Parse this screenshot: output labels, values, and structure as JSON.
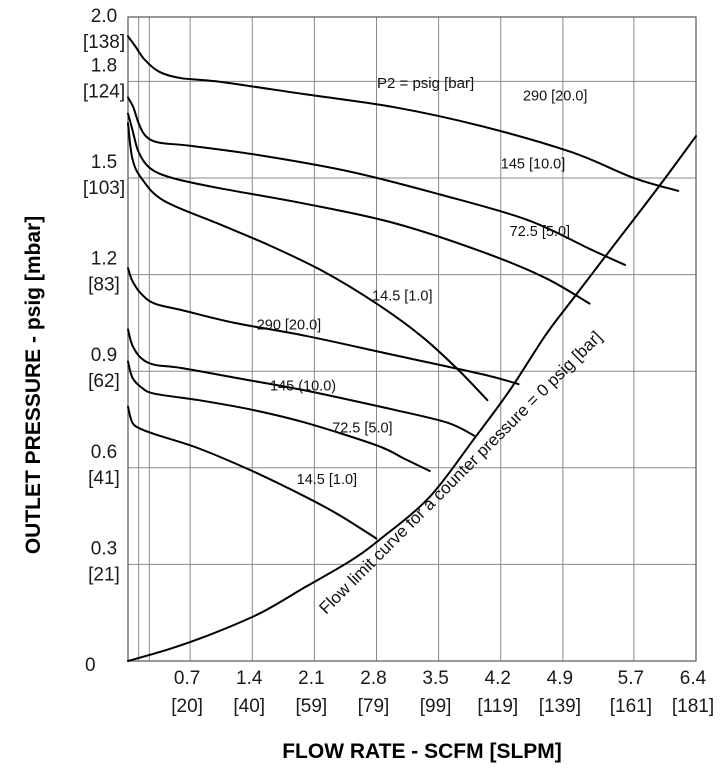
{
  "chart_data": {
    "type": "line",
    "xlabel": "FLOW RATE - SCFM [SLPM]",
    "ylabel": "OUTLET PRESSURE - psig [mbar]",
    "xlim": [
      0,
      6.4
    ],
    "ylim": [
      0,
      2.0
    ],
    "grid": true,
    "x_ticks": [
      {
        "value": 0.7,
        "label": "0.7",
        "sub": "[20]"
      },
      {
        "value": 1.4,
        "label": "1.4",
        "sub": "[40]"
      },
      {
        "value": 2.1,
        "label": "2.1",
        "sub": "[59]"
      },
      {
        "value": 2.8,
        "label": "2.8",
        "sub": "[79]"
      },
      {
        "value": 3.5,
        "label": "3.5",
        "sub": "[99]"
      },
      {
        "value": 4.2,
        "label": "4.2",
        "sub": "[119]"
      },
      {
        "value": 4.9,
        "label": "4.9",
        "sub": "[139]"
      },
      {
        "value": 5.7,
        "label": "5.7",
        "sub": "[161]"
      },
      {
        "value": 6.4,
        "label": "6.4",
        "sub": "[181]"
      }
    ],
    "y_ticks": [
      {
        "value": 0.3,
        "label": "0.3",
        "sub": "[21]"
      },
      {
        "value": 0.6,
        "label": "0.6",
        "sub": "[41]"
      },
      {
        "value": 0.9,
        "label": "0.9",
        "sub": "[62]"
      },
      {
        "value": 1.2,
        "label": "1.2",
        "sub": "[83]"
      },
      {
        "value": 1.5,
        "label": "1.5",
        "sub": "[103]"
      },
      {
        "value": 1.8,
        "label": "1.8",
        "sub": "[124]"
      },
      {
        "value": 2.0,
        "label": "2.0",
        "sub": "[138]"
      }
    ],
    "origin_label": "0",
    "legend_note": "P2 = psig [bar]",
    "series": [
      {
        "name": "290 [20.0]",
        "group": "upper",
        "points": [
          [
            0,
            1.94
          ],
          [
            0.08,
            1.91
          ],
          [
            0.18,
            1.87
          ],
          [
            0.35,
            1.83
          ],
          [
            0.6,
            1.81
          ],
          [
            1.0,
            1.8
          ],
          [
            2.0,
            1.76
          ],
          [
            3.0,
            1.72
          ],
          [
            4.0,
            1.66
          ],
          [
            5.0,
            1.58
          ],
          [
            5.7,
            1.5
          ],
          [
            6.2,
            1.46
          ]
        ]
      },
      {
        "name": "145 [10.0]",
        "group": "upper",
        "points": [
          [
            0,
            1.75
          ],
          [
            0.06,
            1.72
          ],
          [
            0.12,
            1.67
          ],
          [
            0.2,
            1.63
          ],
          [
            0.35,
            1.61
          ],
          [
            0.7,
            1.6
          ],
          [
            1.5,
            1.57
          ],
          [
            2.5,
            1.52
          ],
          [
            3.5,
            1.45
          ],
          [
            4.5,
            1.37
          ],
          [
            5.2,
            1.28
          ],
          [
            5.6,
            1.23
          ]
        ]
      },
      {
        "name": "72.5 [5.0]",
        "group": "upper",
        "points": [
          [
            0,
            1.7
          ],
          [
            0.05,
            1.65
          ],
          [
            0.12,
            1.58
          ],
          [
            0.25,
            1.53
          ],
          [
            0.5,
            1.5
          ],
          [
            1.0,
            1.47
          ],
          [
            2.0,
            1.42
          ],
          [
            3.0,
            1.36
          ],
          [
            4.0,
            1.27
          ],
          [
            4.7,
            1.19
          ],
          [
            5.2,
            1.11
          ]
        ]
      },
      {
        "name": "14.5 [1.0]",
        "group": "upper",
        "points": [
          [
            0,
            1.67
          ],
          [
            0.05,
            1.56
          ],
          [
            0.15,
            1.5
          ],
          [
            0.4,
            1.43
          ],
          [
            1.0,
            1.36
          ],
          [
            1.6,
            1.29
          ],
          [
            2.2,
            1.21
          ],
          [
            2.8,
            1.11
          ],
          [
            3.3,
            1.01
          ],
          [
            3.7,
            0.91
          ],
          [
            4.05,
            0.81
          ]
        ]
      },
      {
        "name": "290 [20.0]",
        "group": "lower",
        "points": [
          [
            0,
            1.22
          ],
          [
            0.05,
            1.18
          ],
          [
            0.15,
            1.14
          ],
          [
            0.3,
            1.11
          ],
          [
            0.6,
            1.09
          ],
          [
            1.2,
            1.05
          ],
          [
            2.0,
            1.01
          ],
          [
            3.0,
            0.95
          ],
          [
            4.0,
            0.89
          ],
          [
            4.4,
            0.86
          ]
        ]
      },
      {
        "name": "145 (10.0)",
        "group": "lower",
        "points": [
          [
            0,
            1.03
          ],
          [
            0.05,
            0.98
          ],
          [
            0.15,
            0.94
          ],
          [
            0.3,
            0.92
          ],
          [
            0.6,
            0.91
          ],
          [
            1.2,
            0.88
          ],
          [
            2.0,
            0.84
          ],
          [
            3.0,
            0.78
          ],
          [
            3.6,
            0.74
          ],
          [
            3.9,
            0.7
          ]
        ]
      },
      {
        "name": "72.5 [5.0]",
        "group": "lower",
        "points": [
          [
            0,
            0.93
          ],
          [
            0.05,
            0.88
          ],
          [
            0.15,
            0.85
          ],
          [
            0.3,
            0.83
          ],
          [
            0.8,
            0.81
          ],
          [
            1.4,
            0.78
          ],
          [
            2.0,
            0.74
          ],
          [
            2.8,
            0.67
          ],
          [
            3.1,
            0.63
          ],
          [
            3.4,
            0.59
          ]
        ]
      },
      {
        "name": "14.5 [1.0]",
        "group": "lower",
        "points": [
          [
            0,
            0.79
          ],
          [
            0.05,
            0.74
          ],
          [
            0.15,
            0.72
          ],
          [
            0.35,
            0.7
          ],
          [
            0.8,
            0.66
          ],
          [
            1.4,
            0.59
          ],
          [
            2.0,
            0.51
          ],
          [
            2.4,
            0.45
          ],
          [
            2.8,
            0.38
          ]
        ]
      },
      {
        "name": "Flow limit curve for a counter pressure = 0 psig [bar]",
        "group": "limit",
        "points": [
          [
            0,
            0
          ],
          [
            0.5,
            0.04
          ],
          [
            1.0,
            0.09
          ],
          [
            1.5,
            0.15
          ],
          [
            2.0,
            0.23
          ],
          [
            2.5,
            0.31
          ],
          [
            2.85,
            0.38
          ],
          [
            3.4,
            0.51
          ],
          [
            3.9,
            0.69
          ],
          [
            4.3,
            0.84
          ],
          [
            4.7,
            1.01
          ],
          [
            5.0,
            1.12
          ],
          [
            5.5,
            1.3
          ],
          [
            6.0,
            1.48
          ],
          [
            6.4,
            1.63
          ]
        ]
      }
    ]
  }
}
